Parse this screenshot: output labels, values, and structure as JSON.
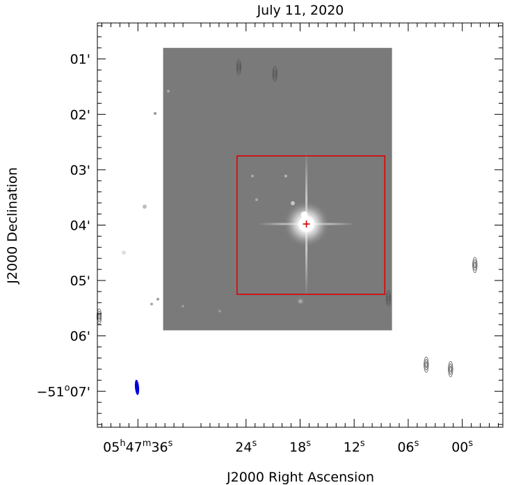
{
  "chart_data": {
    "type": "image_contour",
    "title": "July 11, 2020",
    "xlabel": "J2000 Right Ascension",
    "ylabel": "J2000 Declination",
    "x_ticks": [
      {
        "h": "05",
        "m": "47",
        "s": "36",
        "sec": 36
      },
      {
        "s": "24",
        "sec": 24
      },
      {
        "s": "18",
        "sec": 18
      },
      {
        "s": "12",
        "sec": 12
      },
      {
        "s": "06",
        "sec": 6
      },
      {
        "s": "00",
        "sec": 0
      }
    ],
    "y_ticks": [
      {
        "label": "01'",
        "arcmin": 1
      },
      {
        "label": "02'",
        "arcmin": 2
      },
      {
        "label": "03'",
        "arcmin": 3
      },
      {
        "label": "04'",
        "arcmin": 4
      },
      {
        "label": "05'",
        "arcmin": 5
      },
      {
        "label": "06'",
        "arcmin": 6
      },
      {
        "label": "−51°07'",
        "arcmin": 7,
        "deg_prefix": "−51",
        "min": "07'"
      }
    ],
    "ra_axis_seconds": [
      40.5,
      -4.5
    ],
    "dec_axis_arcmin": [
      0.35,
      7.65
    ],
    "image_extent": {
      "ra_sec": [
        33.2,
        7.8
      ],
      "dec_arcmin": [
        0.8,
        5.9
      ]
    },
    "box": {
      "ra_sec": [
        25.0,
        8.6
      ],
      "dec_arcmin": [
        2.75,
        5.25
      ],
      "color": "#e00000"
    },
    "source_marker": {
      "ra_sec": 17.3,
      "dec_arcmin": 3.98,
      "color": "#cc0000"
    },
    "beam": {
      "ra_sec": 36.1,
      "dec_arcmin": 6.93,
      "color": "#0000dd"
    },
    "contours": [
      {
        "ra_sec": 24.8,
        "dec_arcmin": 1.15
      },
      {
        "ra_sec": 20.8,
        "dec_arcmin": 1.27
      },
      {
        "ra_sec": 4.0,
        "dec_arcmin": 6.52
      },
      {
        "ra_sec": 1.3,
        "dec_arcmin": 6.6
      },
      {
        "ra_sec": -1.4,
        "dec_arcmin": 4.72
      },
      {
        "ra_sec": 40.3,
        "dec_arcmin": 5.65
      },
      {
        "ra_sec": 8.2,
        "dec_arcmin": 5.32
      }
    ],
    "colors": {
      "image_background": "#7a7a7a",
      "frame": "#000000"
    }
  }
}
